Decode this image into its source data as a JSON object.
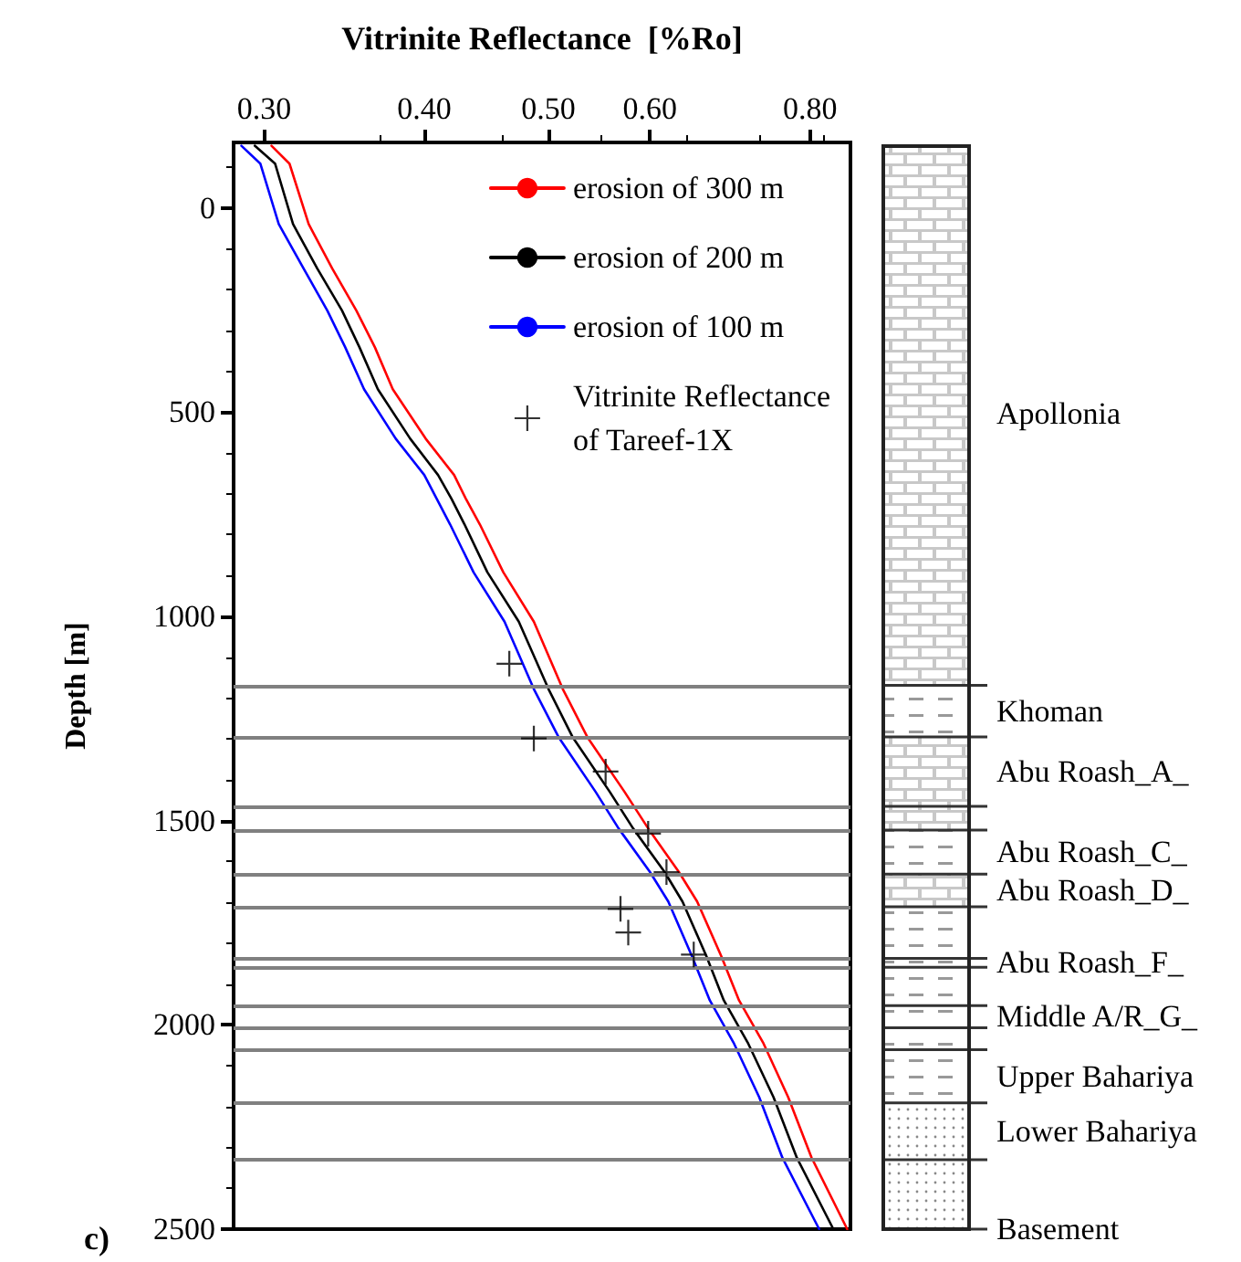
{
  "chart_data": {
    "type": "line",
    "xlabel": "Vitrinite Reflectance  [%Ro]",
    "ylabel": "Depth [m]",
    "log": "x",
    "xlim": [
      0.284,
      0.86
    ],
    "xticks": [
      {
        "value": 0.3,
        "label": "0.30"
      },
      {
        "value": 0.4,
        "label": "0.40"
      },
      {
        "value": 0.5,
        "label": "0.50"
      },
      {
        "value": 0.6,
        "label": "0.60"
      },
      {
        "value": 0.8,
        "label": "0.80"
      }
    ],
    "ylim": [
      2500,
      -160
    ],
    "yticks": [
      0,
      500,
      1000,
      1500,
      2000,
      2500
    ],
    "grid": false,
    "legend": "top right",
    "series": [
      {
        "name": "erosion of 300 m",
        "color": "#ff0000",
        "marker": "none",
        "line_style": "solid",
        "x": [
          0.304,
          0.314,
          0.325,
          0.339,
          0.354,
          0.366,
          0.378,
          0.401,
          0.422,
          0.431,
          0.442,
          0.461,
          0.487,
          0.513,
          0.536,
          0.573,
          0.598,
          0.632,
          0.653,
          0.682,
          0.704,
          0.735,
          0.769,
          0.802,
          0.855
        ],
        "values": [
          -152,
          -108,
          40,
          148,
          251,
          341,
          444,
          565,
          654,
          712,
          775,
          892,
          1013,
          1178,
          1295,
          1429,
          1519,
          1626,
          1698,
          1832,
          1940,
          2043,
          2177,
          2325,
          2500
        ]
      },
      {
        "name": "erosion of 200 m",
        "color": "#000000",
        "marker": "none",
        "line_style": "solid",
        "x": [
          0.295,
          0.306,
          0.316,
          0.33,
          0.345,
          0.356,
          0.368,
          0.39,
          0.41,
          0.42,
          0.43,
          0.448,
          0.474,
          0.5,
          0.522,
          0.558,
          0.582,
          0.616,
          0.636,
          0.664,
          0.685,
          0.715,
          0.749,
          0.781,
          0.834
        ],
        "values": [
          -152,
          -108,
          40,
          148,
          251,
          341,
          444,
          565,
          654,
          712,
          775,
          892,
          1013,
          1178,
          1295,
          1429,
          1519,
          1626,
          1698,
          1832,
          1940,
          2043,
          2177,
          2325,
          2500
        ]
      },
      {
        "name": "erosion of 100 m",
        "color": "#0000ff",
        "marker": "none",
        "line_style": "solid",
        "x": [
          0.288,
          0.298,
          0.308,
          0.322,
          0.336,
          0.347,
          0.359,
          0.38,
          0.4,
          0.409,
          0.419,
          0.437,
          0.462,
          0.487,
          0.509,
          0.544,
          0.567,
          0.6,
          0.62,
          0.647,
          0.668,
          0.697,
          0.73,
          0.761,
          0.813
        ],
        "values": [
          -152,
          -108,
          40,
          148,
          251,
          341,
          444,
          565,
          654,
          712,
          775,
          892,
          1013,
          1178,
          1295,
          1429,
          1519,
          1626,
          1698,
          1832,
          1940,
          2043,
          2177,
          2325,
          2500
        ]
      },
      {
        "name": "Vitrinite Reflectance\nof Tareef-1X",
        "type": "scatter",
        "color": "#000000",
        "marker": "cross",
        "x": [
          0.466,
          0.487,
          0.554,
          0.598,
          0.618,
          0.569,
          0.577,
          0.649
        ],
        "values": [
          1116,
          1299,
          1380,
          1532,
          1626,
          1716,
          1774,
          1828
        ]
      }
    ],
    "ref_lines": [
      {
        "axis": "y",
        "value": 1169,
        "color": "#808080"
      },
      {
        "axis": "y",
        "value": 1295,
        "color": "#808080"
      },
      {
        "axis": "y",
        "value": 1465,
        "color": "#808080"
      },
      {
        "axis": "y",
        "value": 1523,
        "color": "#808080"
      },
      {
        "axis": "y",
        "value": 1631,
        "color": "#808080"
      },
      {
        "axis": "y",
        "value": 1711,
        "color": "#808080"
      },
      {
        "axis": "y",
        "value": 1837,
        "color": "#808080"
      },
      {
        "axis": "y",
        "value": 1859,
        "color": "#808080"
      },
      {
        "axis": "y",
        "value": 1953,
        "color": "#808080"
      },
      {
        "axis": "y",
        "value": 2007,
        "color": "#808080"
      },
      {
        "axis": "y",
        "value": 2061,
        "color": "#808080"
      },
      {
        "axis": "y",
        "value": 2191,
        "color": "#808080"
      },
      {
        "axis": "y",
        "value": 2330,
        "color": "#808080"
      }
    ],
    "annotations": [
      "c)",
      "Apollonia",
      "Khoman",
      "Abu Roash_A_",
      "Abu Roash_C_",
      "Abu Roash_D_",
      "Abu Roash_F_",
      "Middle A/R_G_",
      "Upper Bahariya",
      "Lower Bahariya",
      "Basement"
    ]
  }
}
